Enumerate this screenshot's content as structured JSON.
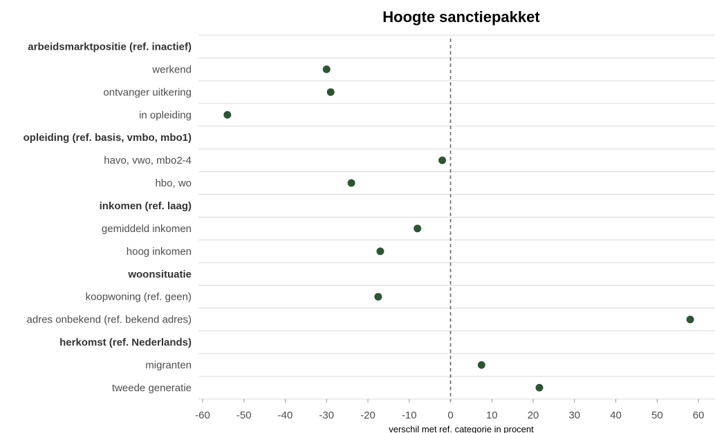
{
  "chart_data": {
    "type": "scatter",
    "title": "Hoogte sanctiepakket",
    "xlabel": "verschil met ref. categorie in procent",
    "ylabel": "",
    "xlim": [
      -61,
      64
    ],
    "xticks": [
      -60,
      -50,
      -40,
      -30,
      -20,
      -10,
      0,
      10,
      20,
      30,
      40,
      50,
      60
    ],
    "reference_line": 0,
    "grid": "horizontal",
    "point_color": "#2d5534",
    "rows": [
      {
        "label": "arbeidsmarktpositie (ref. inactief)",
        "header": true,
        "value": null
      },
      {
        "label": "werkend",
        "header": false,
        "value": -30
      },
      {
        "label": "ontvanger uitkering",
        "header": false,
        "value": -29
      },
      {
        "label": "in opleiding",
        "header": false,
        "value": -54
      },
      {
        "label": "opleiding (ref. basis, vmbo, mbo1)",
        "header": true,
        "value": null
      },
      {
        "label": "havo, vwo, mbo2-4",
        "header": false,
        "value": -2
      },
      {
        "label": "hbo, wo",
        "header": false,
        "value": -24
      },
      {
        "label": "inkomen (ref. laag)",
        "header": true,
        "value": null
      },
      {
        "label": "gemiddeld inkomen",
        "header": false,
        "value": -8
      },
      {
        "label": "hoog inkomen",
        "header": false,
        "value": -17
      },
      {
        "label": "woonsituatie",
        "header": true,
        "value": null
      },
      {
        "label": "koopwoning (ref. geen)",
        "header": false,
        "value": -17.5
      },
      {
        "label": "adres onbekend (ref. bekend adres)",
        "header": false,
        "value": 58
      },
      {
        "label": "herkomst (ref. Nederlands)",
        "header": true,
        "value": null
      },
      {
        "label": "migranten",
        "header": false,
        "value": 7.5
      },
      {
        "label": "tweede generatie",
        "header": false,
        "value": 21.5
      }
    ]
  }
}
